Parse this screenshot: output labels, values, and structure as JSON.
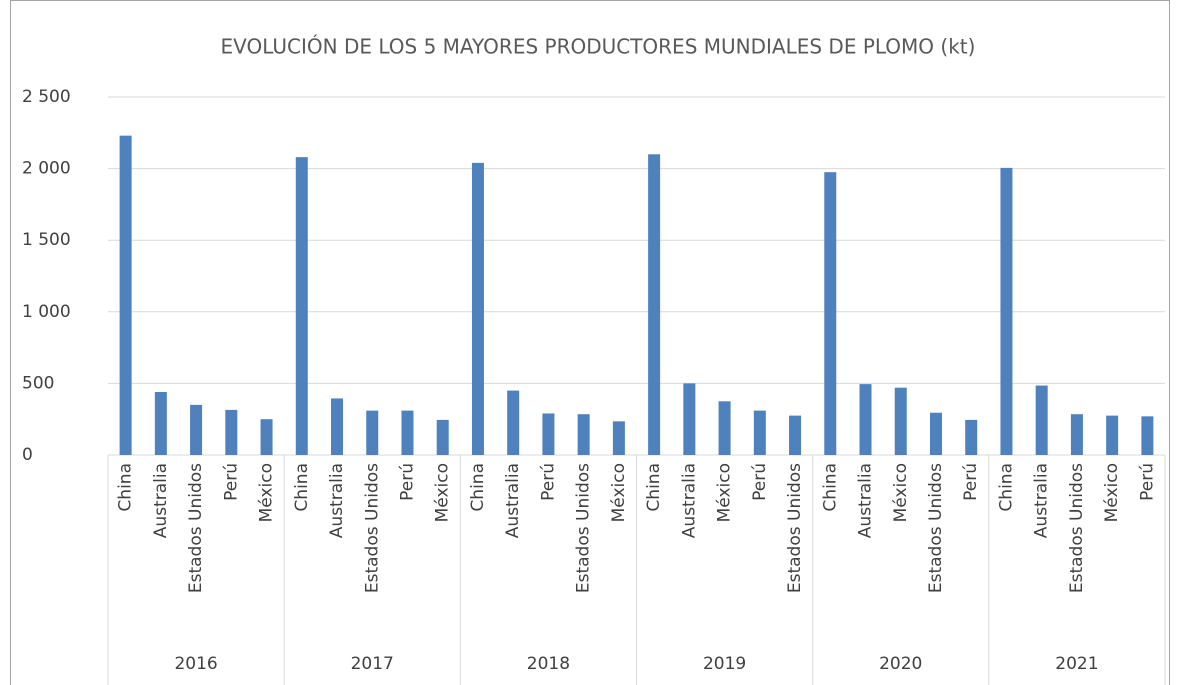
{
  "chart_data": {
    "type": "bar",
    "title": "EVOLUCIÓN DE LOS 5 MAYORES PRODUCTORES MUNDIALES DE PLOMO (kt)",
    "color": "#4f81bd",
    "grid": true,
    "ylim": [
      0,
      2500
    ],
    "yticks": [
      0,
      500,
      {
        "value": 1000,
        "label": "1 000"
      },
      {
        "value": 1500,
        "label": "1 500"
      },
      {
        "value": 2000,
        "label": "2 000"
      },
      {
        "value": 2500,
        "label": "2 500"
      }
    ],
    "groups": [
      {
        "name": "2016",
        "categories": [
          "China",
          "Australia",
          "Estados Unidos",
          "Perú",
          "México"
        ],
        "values": [
          2230,
          440,
          350,
          315,
          250
        ]
      },
      {
        "name": "2017",
        "categories": [
          "China",
          "Australia",
          "Estados Unidos",
          "Perú",
          "México"
        ],
        "values": [
          2080,
          395,
          310,
          310,
          245
        ]
      },
      {
        "name": "2018",
        "categories": [
          "China",
          "Australia",
          "Perú",
          "Estados Unidos",
          "México"
        ],
        "values": [
          2040,
          450,
          290,
          285,
          235
        ]
      },
      {
        "name": "2019",
        "categories": [
          "China",
          "Australia",
          "México",
          "Perú",
          "Estados Unidos"
        ],
        "values": [
          2100,
          500,
          375,
          310,
          275
        ]
      },
      {
        "name": "2020",
        "categories": [
          "China",
          "Australia",
          "México",
          "Estados Unidos",
          "Perú"
        ],
        "values": [
          1975,
          495,
          470,
          295,
          245
        ]
      },
      {
        "name": "2021",
        "categories": [
          "China",
          "Australia",
          "Estados Unidos",
          "México",
          "Perú"
        ],
        "values": [
          2005,
          485,
          285,
          275,
          270
        ]
      }
    ]
  }
}
